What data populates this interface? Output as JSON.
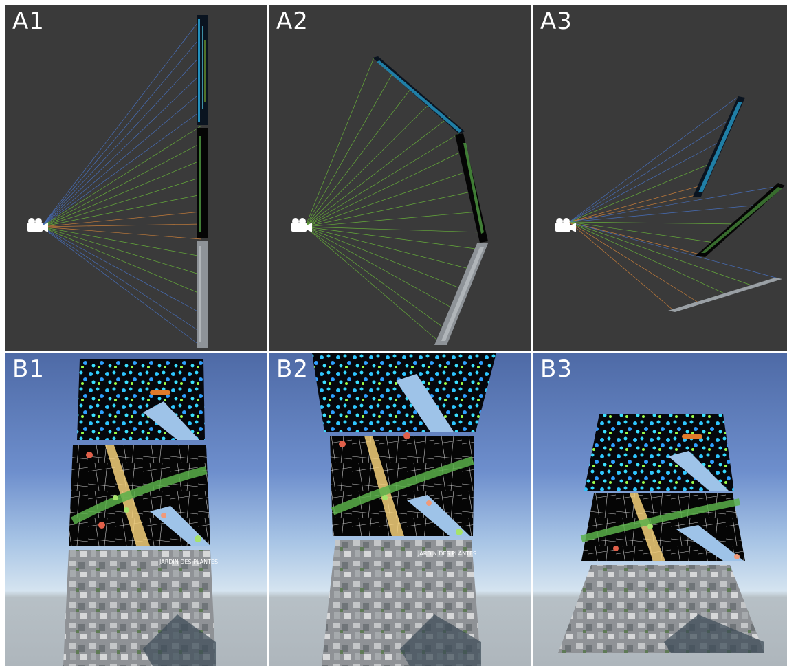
{
  "panels": {
    "a1": {
      "label": "A1"
    },
    "a2": {
      "label": "A2"
    },
    "a3": {
      "label": "A3"
    },
    "b1": {
      "label": "B1"
    },
    "b2": {
      "label": "B2"
    },
    "b3": {
      "label": "B3"
    }
  },
  "colors": {
    "background_a": "#3a3a3a",
    "sky_top": "#4e6aa6",
    "horizon": "#d5e4f0",
    "ground": "#aeb6bc",
    "heat_layer": "#2ec5ff",
    "network_layer": "#5ab04a",
    "road_layer": "#f5d07a",
    "water": "#9ec3e8",
    "ray_blue": "#4a78d0",
    "ray_green": "#6ec23a",
    "ray_orange": "#e08a3a"
  },
  "map_labels": {
    "park_name": "JARDIN DES PLANTES"
  },
  "icons": {
    "camera": "video-camera-icon"
  }
}
